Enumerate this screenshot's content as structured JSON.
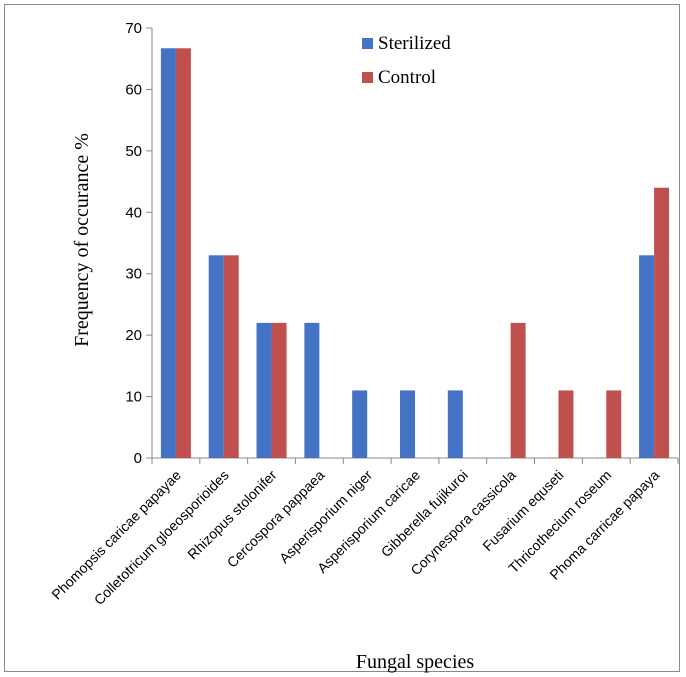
{
  "chart_data": {
    "type": "bar",
    "title": "",
    "xlabel": "Fungal species",
    "ylabel": "Frequency of occurance %",
    "ylim": [
      0,
      70
    ],
    "yticks": [
      0,
      10,
      20,
      30,
      40,
      50,
      60,
      70
    ],
    "grid": false,
    "legend_position": "top-center",
    "categories": [
      "Phomopsis caricae papayae",
      "Colletotricum gloeosporioides",
      "Rhizopus stolonifer",
      "Cercospora pappaea",
      "Asperisporium niger",
      "Asperisporium caricae",
      "Gibberella fujikuroi",
      "Corynespora cassicola",
      "Fusarium equseti",
      "Thricothecium roseum",
      "Phoma carricae papaya"
    ],
    "series": [
      {
        "name": "Sterilized",
        "color": "#4472C4",
        "values": [
          66.7,
          33,
          22,
          22,
          11,
          11,
          11,
          0,
          0,
          0,
          33
        ]
      },
      {
        "name": "Control",
        "color": "#C0504D",
        "values": [
          66.7,
          33,
          22,
          0,
          0,
          0,
          0,
          22,
          11,
          11,
          44
        ]
      }
    ]
  }
}
